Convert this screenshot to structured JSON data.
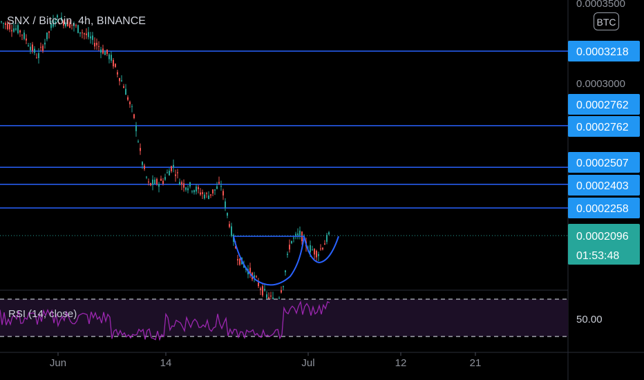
{
  "header": {
    "symbol": "SNX / Bitcoin, 4h, BINANCE",
    "currency_button": "BTC"
  },
  "rsi": {
    "label": "RSI (14, close)",
    "scale_label": "50.00"
  },
  "colors": {
    "background": "#000000",
    "level_line": "#2962ff",
    "level_tag": "#2196f3",
    "last_price_tag": "#26a69a",
    "up_candle": "#26a69a",
    "down_candle": "#ef5350",
    "rsi_line": "#9c27b0",
    "cup_curve": "#2962ff"
  },
  "chart_data": {
    "type": "candlestick",
    "y_axis_ticks": [
      "0.0003500",
      "0.0003000"
    ],
    "x_axis_ticks": [
      "Jun",
      "14",
      "Jul",
      "12",
      "21"
    ],
    "horizontal_levels": [
      0.0003218,
      0.0002762,
      0.0002507,
      0.0002403,
      0.0002258
    ],
    "price_tags": [
      "0.0003218",
      "0.0002762",
      "0.0002762",
      "0.0002507",
      "0.0002403",
      "0.0002258"
    ],
    "last_price": "0.0002096",
    "countdown": "01:53:48",
    "pattern": "cup and handle",
    "rsi": {
      "upper_band": 70,
      "lower_band": 30,
      "mid_label": "50.00"
    }
  }
}
